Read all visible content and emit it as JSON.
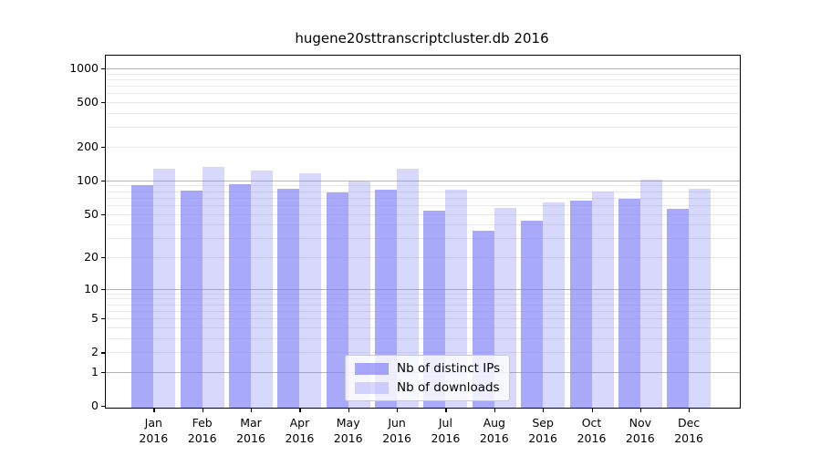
{
  "chart_data": {
    "type": "bar",
    "title": "hugene20sttranscriptcluster.db 2016",
    "categories": [
      "Jan",
      "Feb",
      "Mar",
      "Apr",
      "May",
      "Jun",
      "Jul",
      "Aug",
      "Sep",
      "Oct",
      "Nov",
      "Dec"
    ],
    "x_year_label": "2016",
    "series": [
      {
        "name": "Nb of distinct IPs",
        "values": [
          90,
          81,
          93,
          84,
          78,
          83,
          53,
          35,
          43,
          66,
          68,
          55
        ]
      },
      {
        "name": "Nb of downloads",
        "values": [
          128,
          132,
          122,
          115,
          98,
          128,
          82,
          57,
          63,
          80,
          101,
          84
        ]
      }
    ],
    "yscale": "log10(value+1)",
    "yticks": [
      1000,
      500,
      200,
      100,
      50,
      20,
      10,
      5,
      2,
      1,
      0
    ],
    "ylim": [
      0,
      1300
    ],
    "grid": true,
    "legend_position": "lower center"
  },
  "colors": {
    "bar_distinct_ips": "rgba(125,125,248,0.66)",
    "bar_downloads": "rgba(125,125,248,0.30)",
    "bar_distinct_ips_hex": "#a8a8f7",
    "bar_downloads_hex": "#d9d9f7",
    "grid_major": "#b5b5b5",
    "grid_minor": "#e9e9e9",
    "axis": "#000000"
  }
}
